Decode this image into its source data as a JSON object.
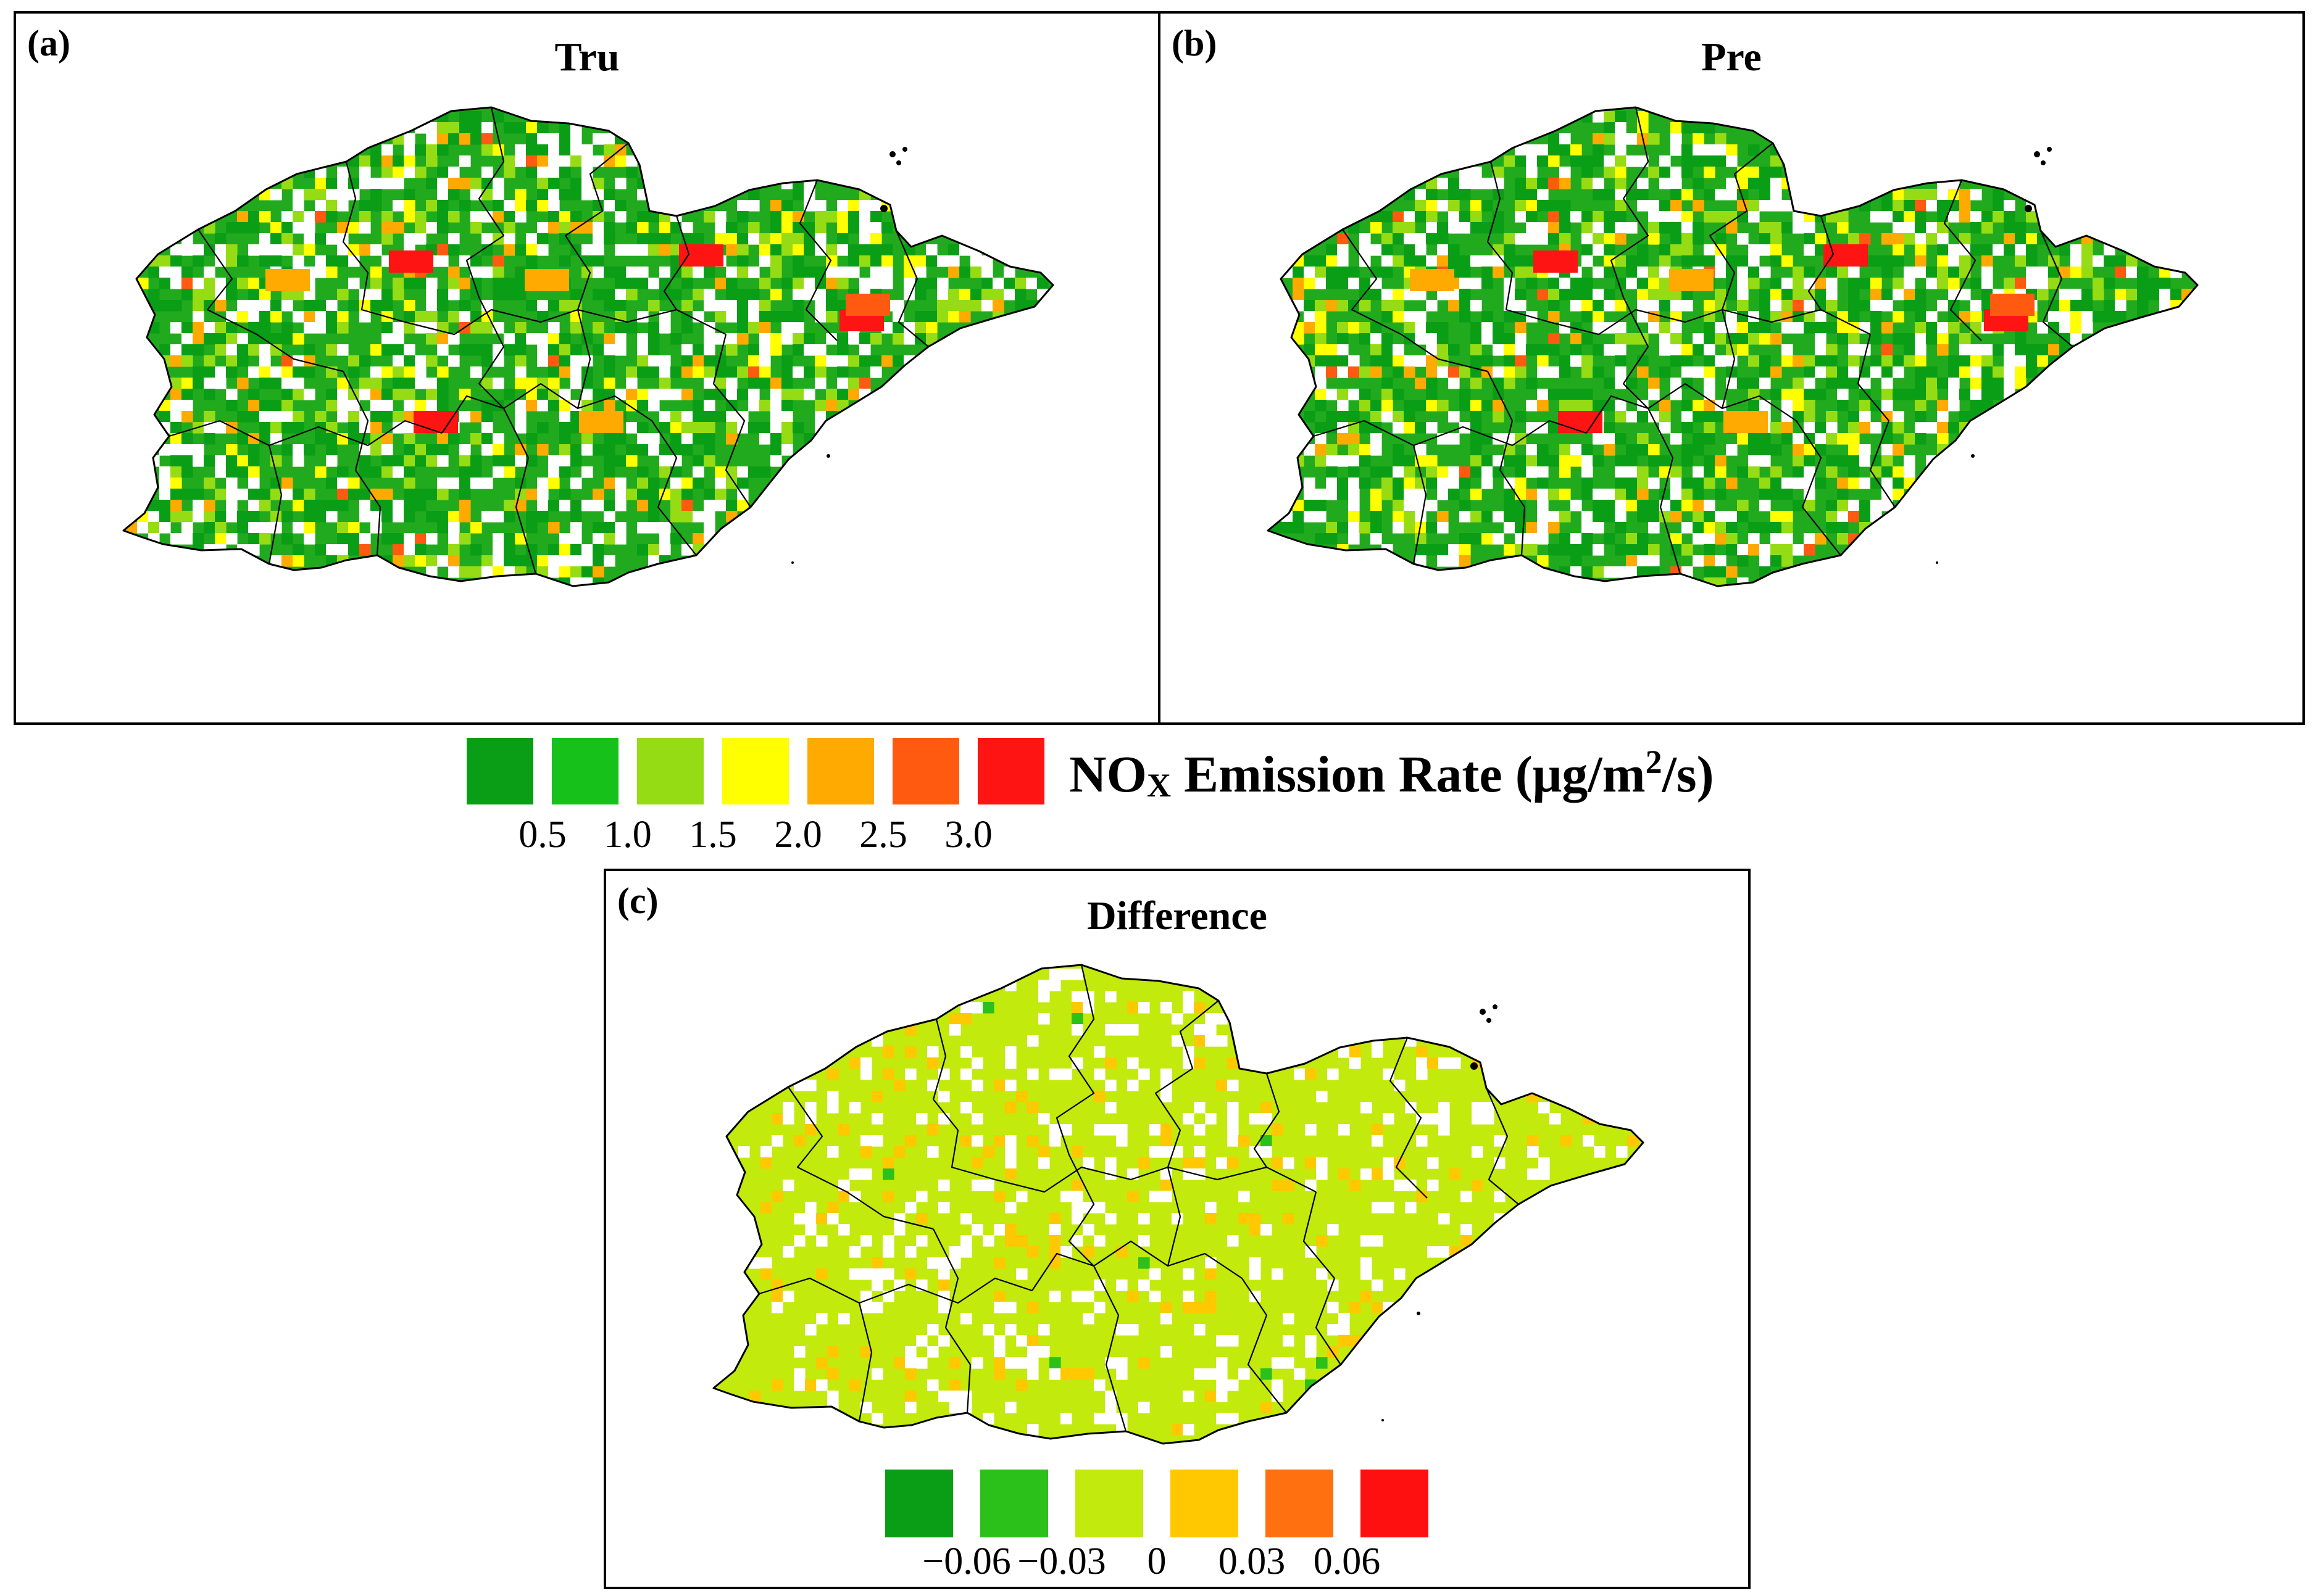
{
  "panels": {
    "a": {
      "label": "(a)",
      "title": "Tru"
    },
    "b": {
      "label": "(b)",
      "title": "Pre"
    },
    "c": {
      "label": "(c)",
      "title": "Difference"
    }
  },
  "emission_legend": {
    "title_prefix": "NO",
    "title_sub": "X",
    "title_mid": " Emission Rate (μg/m",
    "title_sup": "2",
    "title_suffix": "/s)",
    "colors": [
      "#0a9e16",
      "#16c21a",
      "#96dc14",
      "#ffff00",
      "#ffaa00",
      "#ff5a10",
      "#ff1414"
    ],
    "ticks": [
      "0.5",
      "1.0",
      "1.5",
      "2.0",
      "2.5",
      "3.0"
    ]
  },
  "difference_legend": {
    "colors": [
      "#0a9e16",
      "#2cc01a",
      "#c2ea0c",
      "#ffc800",
      "#ff7010",
      "#ff1010"
    ],
    "ticks": [
      "−0.06",
      "−0.03",
      "0",
      "0.03",
      "0.06"
    ]
  },
  "map_region": {
    "outline_color": "#000000",
    "emission_fill": "#22aa1e",
    "difference_fill": "#c2ea0c"
  }
}
